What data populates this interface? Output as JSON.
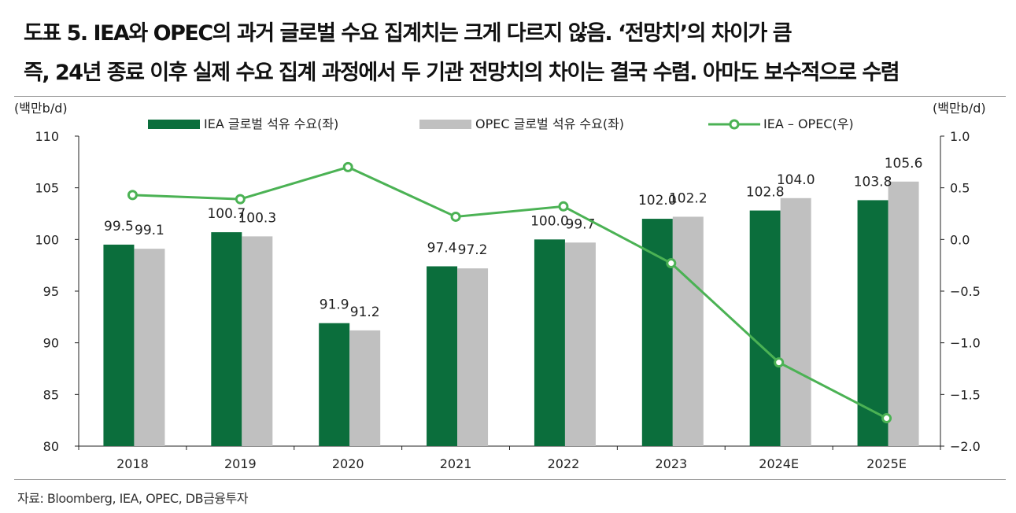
{
  "title_line1": "도표 5. IEA와 OPEC의 과거 글로벌 수요 집계치는 크게 다르지 않음. ‘전망치’의 차이가 큼",
  "title_line2": "즉, 24년 종료 이후 실제 수요 집계 과정에서 두 기관 전망치의 차이는 결국 수렴. 아마도 보수적으로 수렴",
  "source": "자료: Bloomberg, IEA, OPEC, DB금융투자",
  "colors": {
    "iea": "#0b6e3c",
    "opec": "#c0c0c0",
    "diff": "#4bb254"
  },
  "chart_data": {
    "type": "bar",
    "categories": [
      "2018",
      "2019",
      "2020",
      "2021",
      "2022",
      "2023",
      "2024E",
      "2025E"
    ],
    "series": [
      {
        "name": "IEA 글로벌 석유 수요(좌)",
        "type": "bar",
        "axis": "left",
        "values": [
          99.5,
          100.7,
          91.9,
          97.4,
          100.0,
          102.0,
          102.8,
          103.8
        ],
        "labels": [
          "99.5",
          "100.7",
          "91.9",
          "97.4",
          "100.0",
          "102.0",
          "102.8",
          "103.8"
        ]
      },
      {
        "name": "OPEC 글로벌 석유 수요(좌)",
        "type": "bar",
        "axis": "left",
        "values": [
          99.1,
          100.3,
          91.2,
          97.2,
          99.7,
          102.2,
          104.0,
          105.6
        ],
        "labels": [
          "99.1",
          "100.3",
          "91.2",
          "97.2",
          "99.7",
          "102.2",
          "104.0",
          "105.6"
        ]
      },
      {
        "name": "IEA – OPEC(우)",
        "type": "line",
        "axis": "right",
        "values": [
          0.43,
          0.39,
          0.7,
          0.22,
          0.32,
          -0.23,
          -1.19,
          -1.73
        ]
      }
    ],
    "ylabel_left": "(백만b/d)",
    "ylabel_right": "(백만b/d)",
    "ylim_left": [
      80,
      110
    ],
    "yticks_left": [
      "80",
      "85",
      "90",
      "95",
      "100",
      "105",
      "110"
    ],
    "ylim_right": [
      -2.0,
      1.0
    ],
    "yticks_right": [
      "−2.0",
      "−1.5",
      "−1.0",
      "−0.5",
      "0.0",
      "0.5",
      "1.0"
    ],
    "legend_position": "top",
    "grid": false
  }
}
